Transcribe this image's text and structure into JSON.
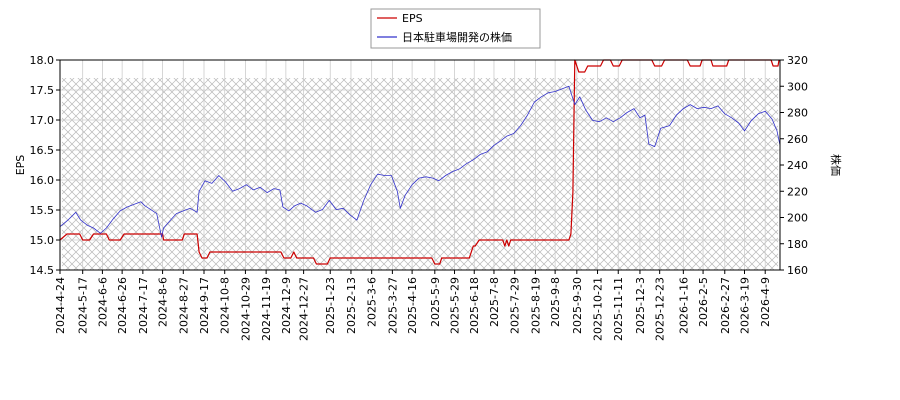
{
  "chart_data": {
    "type": "line",
    "title": "",
    "xlabel": "",
    "ylabel_left": "EPS",
    "ylabel_right": "株価",
    "ylim_left": [
      14.5,
      18.0
    ],
    "ylim_right": [
      160,
      320
    ],
    "yticks_left": [
      "14.5",
      "15.0",
      "15.5",
      "16.0",
      "16.5",
      "17.0",
      "17.5",
      "18.0"
    ],
    "yticks_right": [
      "160",
      "180",
      "200",
      "220",
      "240",
      "260",
      "280",
      "300",
      "320"
    ],
    "xlim": [
      "2024-04-24",
      "2026-04-24"
    ],
    "xticks": [
      "2024-4-24",
      "2024-5-17",
      "2024-6-6",
      "2024-6-26",
      "2024-7-17",
      "2024-8-6",
      "2024-8-27",
      "2024-9-17",
      "2024-10-8",
      "2024-10-29",
      "2024-11-19",
      "2024-12-9",
      "2024-12-27",
      "2025-1-23",
      "2025-2-13",
      "2025-3-6",
      "2025-3-27",
      "2025-4-16",
      "2025-5-9",
      "2025-5-29",
      "2025-6-18",
      "2025-7-8",
      "2025-7-29",
      "2025-8-19",
      "2025-9-8",
      "2025-9-30",
      "2025-10-21",
      "2025-11-11",
      "2025-12-3",
      "2025-12-23",
      "2026-1-16",
      "2026-2-5",
      "2026-2-27",
      "2026-3-19",
      "2026-4-9"
    ],
    "grid": true,
    "legend": "top-center",
    "series": [
      {
        "name": "EPS",
        "axis": "left",
        "color": "#cc0000",
        "points": [
          [
            "2024-04-24",
            15.0
          ],
          [
            "2024-05-01",
            15.1
          ],
          [
            "2024-05-14",
            15.1
          ],
          [
            "2024-05-17",
            15.0
          ],
          [
            "2024-05-24",
            15.0
          ],
          [
            "2024-05-28",
            15.1
          ],
          [
            "2024-06-10",
            15.1
          ],
          [
            "2024-06-13",
            15.0
          ],
          [
            "2024-06-24",
            15.0
          ],
          [
            "2024-06-28",
            15.1
          ],
          [
            "2024-08-06",
            15.1
          ],
          [
            "2024-08-07",
            15.0
          ],
          [
            "2024-08-26",
            15.0
          ],
          [
            "2024-08-28",
            15.1
          ],
          [
            "2024-09-10",
            15.1
          ],
          [
            "2024-09-12",
            14.8
          ],
          [
            "2024-09-15",
            14.7
          ],
          [
            "2024-09-20",
            14.7
          ],
          [
            "2024-09-23",
            14.8
          ],
          [
            "2024-12-04",
            14.8
          ],
          [
            "2024-12-07",
            14.7
          ],
          [
            "2024-12-14",
            14.7
          ],
          [
            "2024-12-17",
            14.8
          ],
          [
            "2024-12-20",
            14.7
          ],
          [
            "2025-01-06",
            14.7
          ],
          [
            "2025-01-09",
            14.6
          ],
          [
            "2025-01-20",
            14.6
          ],
          [
            "2025-01-23",
            14.7
          ],
          [
            "2025-05-06",
            14.7
          ],
          [
            "2025-05-09",
            14.6
          ],
          [
            "2025-05-14",
            14.6
          ],
          [
            "2025-05-16",
            14.7
          ],
          [
            "2025-06-13",
            14.7
          ],
          [
            "2025-06-17",
            14.9
          ],
          [
            "2025-06-19",
            14.9
          ],
          [
            "2025-06-23",
            15.0
          ],
          [
            "2025-07-17",
            15.0
          ],
          [
            "2025-07-19",
            14.9
          ],
          [
            "2025-07-21",
            15.0
          ],
          [
            "2025-07-23",
            14.9
          ],
          [
            "2025-07-25",
            15.0
          ],
          [
            "2025-09-22",
            15.0
          ],
          [
            "2025-09-24",
            15.1
          ],
          [
            "2025-09-26",
            15.8
          ],
          [
            "2025-09-28",
            18.0
          ],
          [
            "2025-10-02",
            17.8
          ],
          [
            "2025-10-08",
            17.8
          ],
          [
            "2025-10-11",
            17.9
          ],
          [
            "2025-10-24",
            17.9
          ],
          [
            "2025-10-27",
            18.0
          ],
          [
            "2025-11-03",
            18.0
          ],
          [
            "2025-11-06",
            17.9
          ],
          [
            "2025-11-12",
            17.9
          ],
          [
            "2025-11-15",
            18.0
          ],
          [
            "2025-12-15",
            18.0
          ],
          [
            "2025-12-18",
            17.9
          ],
          [
            "2025-12-25",
            17.9
          ],
          [
            "2025-12-28",
            18.0
          ],
          [
            "2026-01-20",
            18.0
          ],
          [
            "2026-01-23",
            17.9
          ],
          [
            "2026-02-02",
            17.9
          ],
          [
            "2026-02-04",
            18.0
          ],
          [
            "2026-02-13",
            18.0
          ],
          [
            "2026-02-15",
            17.9
          ],
          [
            "2026-03-01",
            17.9
          ],
          [
            "2026-03-03",
            18.0
          ],
          [
            "2026-04-15",
            18.0
          ],
          [
            "2026-04-17",
            17.9
          ],
          [
            "2026-04-22",
            17.9
          ],
          [
            "2026-04-23",
            18.0
          ]
        ]
      },
      {
        "name": "日本駐車場開発の株価",
        "axis": "right",
        "color": "#3333cc",
        "points": [
          [
            "2024-04-24",
            193
          ],
          [
            "2024-05-02",
            198
          ],
          [
            "2024-05-10",
            204
          ],
          [
            "2024-05-15",
            198
          ],
          [
            "2024-05-22",
            194
          ],
          [
            "2024-05-28",
            192
          ],
          [
            "2024-06-04",
            188
          ],
          [
            "2024-06-10",
            192
          ],
          [
            "2024-06-17",
            199
          ],
          [
            "2024-06-24",
            205
          ],
          [
            "2024-07-01",
            208
          ],
          [
            "2024-07-08",
            210
          ],
          [
            "2024-07-15",
            212
          ],
          [
            "2024-07-19",
            209
          ],
          [
            "2024-07-25",
            206
          ],
          [
            "2024-07-31",
            203
          ],
          [
            "2024-08-05",
            185
          ],
          [
            "2024-08-07",
            192
          ],
          [
            "2024-08-14",
            198
          ],
          [
            "2024-08-20",
            203
          ],
          [
            "2024-08-27",
            205
          ],
          [
            "2024-09-03",
            207
          ],
          [
            "2024-09-10",
            204
          ],
          [
            "2024-09-12",
            220
          ],
          [
            "2024-09-18",
            228
          ],
          [
            "2024-09-25",
            226
          ],
          [
            "2024-10-02",
            232
          ],
          [
            "2024-10-09",
            227
          ],
          [
            "2024-10-16",
            220
          ],
          [
            "2024-10-23",
            222
          ],
          [
            "2024-10-30",
            225
          ],
          [
            "2024-11-06",
            221
          ],
          [
            "2024-11-13",
            223
          ],
          [
            "2024-11-20",
            219
          ],
          [
            "2024-11-27",
            222
          ],
          [
            "2024-12-03",
            221
          ],
          [
            "2024-12-06",
            208
          ],
          [
            "2024-12-12",
            205
          ],
          [
            "2024-12-18",
            209
          ],
          [
            "2024-12-24",
            211
          ],
          [
            "2024-12-30",
            209
          ],
          [
            "2025-01-08",
            204
          ],
          [
            "2025-01-15",
            206
          ],
          [
            "2025-01-22",
            213
          ],
          [
            "2025-01-29",
            206
          ],
          [
            "2025-02-05",
            207
          ],
          [
            "2025-02-12",
            202
          ],
          [
            "2025-02-19",
            198
          ],
          [
            "2025-02-26",
            213
          ],
          [
            "2025-03-05",
            225
          ],
          [
            "2025-03-12",
            233
          ],
          [
            "2025-03-19",
            232
          ],
          [
            "2025-03-26",
            232
          ],
          [
            "2025-04-01",
            220
          ],
          [
            "2025-04-04",
            207
          ],
          [
            "2025-04-09",
            217
          ],
          [
            "2025-04-16",
            225
          ],
          [
            "2025-04-23",
            230
          ],
          [
            "2025-04-30",
            231
          ],
          [
            "2025-05-07",
            230
          ],
          [
            "2025-05-13",
            228
          ],
          [
            "2025-05-20",
            232
          ],
          [
            "2025-05-27",
            235
          ],
          [
            "2025-06-03",
            237
          ],
          [
            "2025-06-10",
            241
          ],
          [
            "2025-06-17",
            244
          ],
          [
            "2025-06-24",
            248
          ],
          [
            "2025-07-01",
            250
          ],
          [
            "2025-07-08",
            255
          ],
          [
            "2025-07-14",
            258
          ],
          [
            "2025-07-21",
            262
          ],
          [
            "2025-07-28",
            264
          ],
          [
            "2025-08-04",
            270
          ],
          [
            "2025-08-11",
            278
          ],
          [
            "2025-08-18",
            288
          ],
          [
            "2025-08-25",
            292
          ],
          [
            "2025-09-01",
            295
          ],
          [
            "2025-09-08",
            296
          ],
          [
            "2025-09-15",
            298
          ],
          [
            "2025-09-22",
            300
          ],
          [
            "2025-09-28",
            286
          ],
          [
            "2025-10-03",
            292
          ],
          [
            "2025-10-09",
            282
          ],
          [
            "2025-10-16",
            274
          ],
          [
            "2025-10-23",
            273
          ],
          [
            "2025-10-30",
            276
          ],
          [
            "2025-11-06",
            273
          ],
          [
            "2025-11-13",
            276
          ],
          [
            "2025-11-20",
            280
          ],
          [
            "2025-11-27",
            283
          ],
          [
            "2025-12-03",
            276
          ],
          [
            "2025-12-08",
            278
          ],
          [
            "2025-12-12",
            256
          ],
          [
            "2025-12-18",
            254
          ],
          [
            "2025-12-24",
            268
          ],
          [
            "2026-01-02",
            270
          ],
          [
            "2026-01-09",
            278
          ],
          [
            "2026-01-16",
            283
          ],
          [
            "2026-01-23",
            286
          ],
          [
            "2026-01-30",
            283
          ],
          [
            "2026-02-06",
            284
          ],
          [
            "2026-02-13",
            283
          ],
          [
            "2026-02-20",
            285
          ],
          [
            "2026-02-27",
            279
          ],
          [
            "2026-03-06",
            276
          ],
          [
            "2026-03-13",
            272
          ],
          [
            "2026-03-19",
            266
          ],
          [
            "2026-03-26",
            274
          ],
          [
            "2026-04-02",
            279
          ],
          [
            "2026-04-09",
            281
          ],
          [
            "2026-04-16",
            275
          ],
          [
            "2026-04-21",
            266
          ],
          [
            "2026-04-24",
            255
          ]
        ]
      }
    ]
  }
}
